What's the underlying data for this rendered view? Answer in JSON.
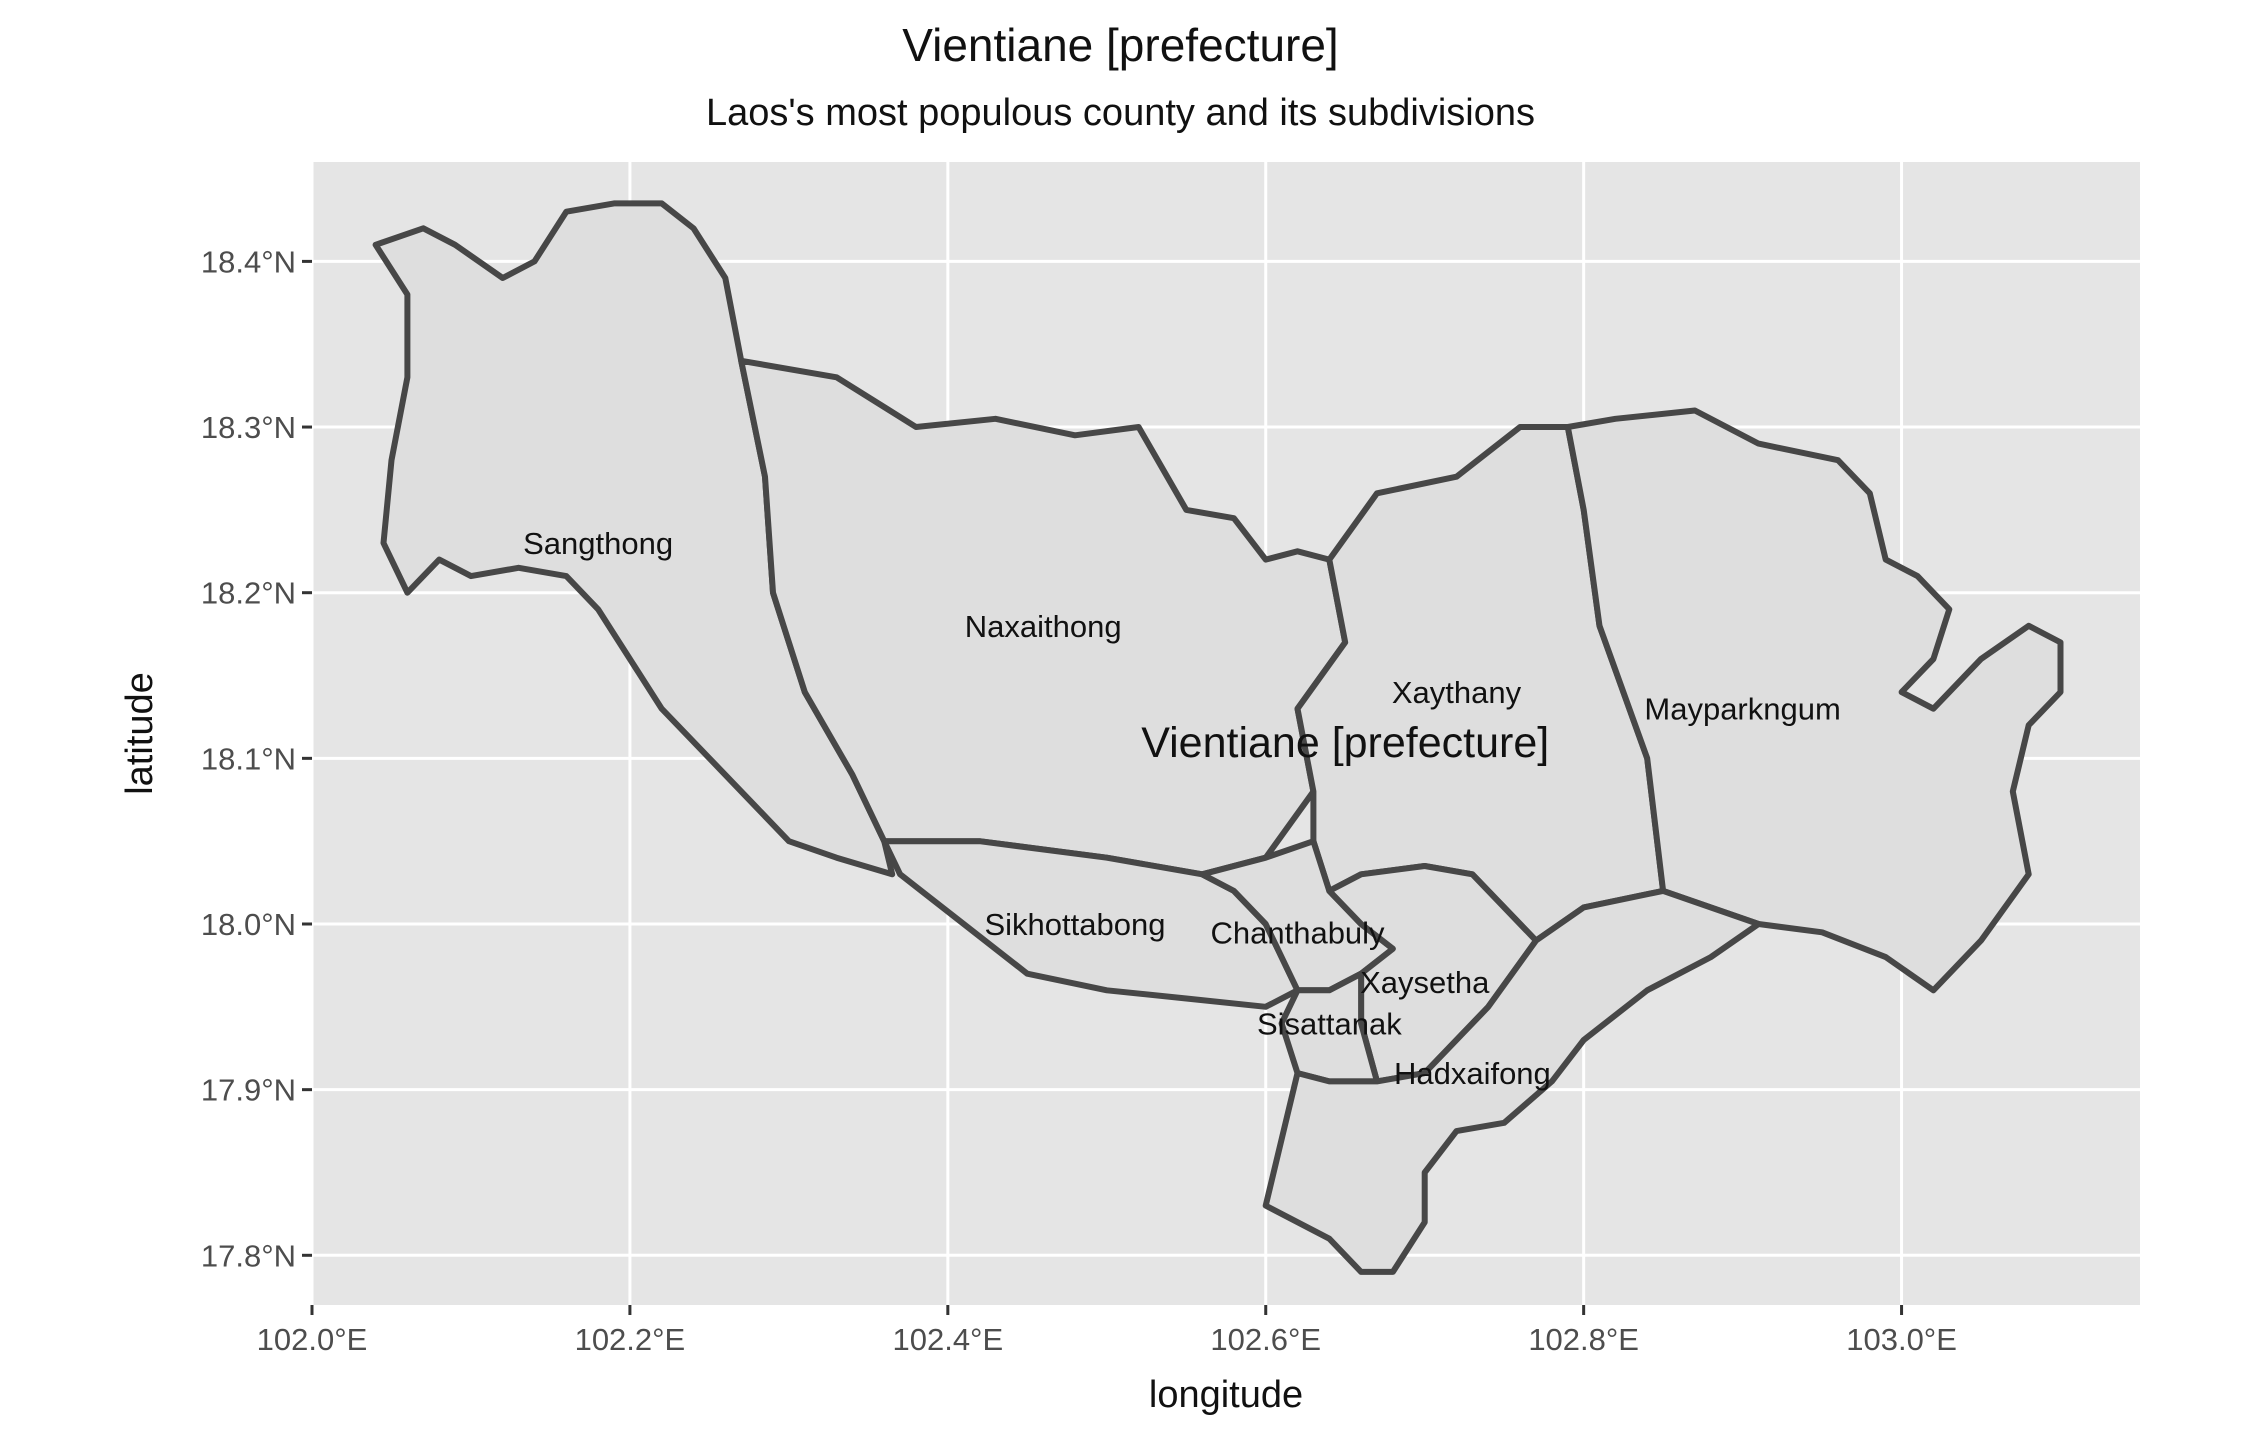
{
  "title": "Vientiane [prefecture]",
  "subtitle": "Laos's most populous county and its subdivisions",
  "colors": {
    "panel_background": "#e5e5e5",
    "region_fill": "#dedede",
    "region_stroke": "#474747",
    "grid": "#ffffff"
  },
  "chart_data": {
    "type": "map",
    "xlabel": "longitude",
    "ylabel": "latitude",
    "xlim": [
      102.0,
      103.15
    ],
    "ylim": [
      17.77,
      18.46
    ],
    "x_ticks": [
      {
        "value": 102.0,
        "label": "102.0°E"
      },
      {
        "value": 102.2,
        "label": "102.2°E"
      },
      {
        "value": 102.4,
        "label": "102.4°E"
      },
      {
        "value": 102.6,
        "label": "102.6°E"
      },
      {
        "value": 102.8,
        "label": "102.8°E"
      },
      {
        "value": 103.0,
        "label": "103.0°E"
      }
    ],
    "y_ticks": [
      {
        "value": 17.8,
        "label": "17.8°N"
      },
      {
        "value": 17.9,
        "label": "17.9°N"
      },
      {
        "value": 18.0,
        "label": "18.0°N"
      },
      {
        "value": 18.1,
        "label": "18.1°N"
      },
      {
        "value": 18.2,
        "label": "18.2°N"
      },
      {
        "value": 18.3,
        "label": "18.3°N"
      },
      {
        "value": 18.4,
        "label": "18.4°N"
      }
    ],
    "county_label": {
      "text": "Vientiane [prefecture]",
      "lon": 102.65,
      "lat": 18.11
    },
    "regions": [
      {
        "name": "Sangthong",
        "label_lon": 102.18,
        "label_lat": 18.23,
        "boundary": [
          [
            102.04,
            18.41
          ],
          [
            102.07,
            18.42
          ],
          [
            102.09,
            18.41
          ],
          [
            102.12,
            18.39
          ],
          [
            102.14,
            18.4
          ],
          [
            102.16,
            18.43
          ],
          [
            102.19,
            18.435
          ],
          [
            102.22,
            18.435
          ],
          [
            102.24,
            18.42
          ],
          [
            102.26,
            18.39
          ],
          [
            102.27,
            18.34
          ],
          [
            102.285,
            18.27
          ],
          [
            102.29,
            18.2
          ],
          [
            102.31,
            18.14
          ],
          [
            102.34,
            18.09
          ],
          [
            102.36,
            18.05
          ],
          [
            102.365,
            18.03
          ],
          [
            102.33,
            18.04
          ],
          [
            102.3,
            18.05
          ],
          [
            102.28,
            18.07
          ],
          [
            102.25,
            18.1
          ],
          [
            102.22,
            18.13
          ],
          [
            102.2,
            18.16
          ],
          [
            102.18,
            18.19
          ],
          [
            102.16,
            18.21
          ],
          [
            102.13,
            18.215
          ],
          [
            102.1,
            18.21
          ],
          [
            102.08,
            18.22
          ],
          [
            102.06,
            18.2
          ],
          [
            102.045,
            18.23
          ],
          [
            102.05,
            18.28
          ],
          [
            102.06,
            18.33
          ],
          [
            102.06,
            18.38
          ],
          [
            102.04,
            18.41
          ]
        ]
      },
      {
        "name": "Naxaithong",
        "label_lon": 102.46,
        "label_lat": 18.18,
        "boundary": [
          [
            102.27,
            18.34
          ],
          [
            102.33,
            18.33
          ],
          [
            102.38,
            18.3
          ],
          [
            102.43,
            18.305
          ],
          [
            102.48,
            18.295
          ],
          [
            102.52,
            18.3
          ],
          [
            102.55,
            18.25
          ],
          [
            102.58,
            18.245
          ],
          [
            102.6,
            18.22
          ],
          [
            102.62,
            18.225
          ],
          [
            102.64,
            18.22
          ],
          [
            102.65,
            18.17
          ],
          [
            102.62,
            18.13
          ],
          [
            102.63,
            18.08
          ],
          [
            102.6,
            18.04
          ],
          [
            102.56,
            18.03
          ],
          [
            102.5,
            18.04
          ],
          [
            102.42,
            18.05
          ],
          [
            102.36,
            18.05
          ],
          [
            102.34,
            18.09
          ],
          [
            102.31,
            18.14
          ],
          [
            102.29,
            18.2
          ],
          [
            102.285,
            18.27
          ],
          [
            102.27,
            18.34
          ]
        ]
      },
      {
        "name": "Xaythany",
        "label_lon": 102.72,
        "label_lat": 18.14,
        "boundary": [
          [
            102.64,
            18.22
          ],
          [
            102.67,
            18.26
          ],
          [
            102.72,
            18.27
          ],
          [
            102.76,
            18.3
          ],
          [
            102.79,
            18.3
          ],
          [
            102.8,
            18.25
          ],
          [
            102.81,
            18.18
          ],
          [
            102.84,
            18.1
          ],
          [
            102.85,
            18.02
          ],
          [
            102.8,
            18.01
          ],
          [
            102.77,
            17.99
          ],
          [
            102.73,
            18.03
          ],
          [
            102.7,
            18.035
          ],
          [
            102.66,
            18.03
          ],
          [
            102.64,
            18.02
          ],
          [
            102.63,
            18.05
          ],
          [
            102.63,
            18.08
          ],
          [
            102.62,
            18.13
          ],
          [
            102.65,
            18.17
          ],
          [
            102.64,
            18.22
          ]
        ]
      },
      {
        "name": "Mayparkngum",
        "label_lon": 102.9,
        "label_lat": 18.13,
        "boundary": [
          [
            102.79,
            18.3
          ],
          [
            102.82,
            18.305
          ],
          [
            102.87,
            18.31
          ],
          [
            102.91,
            18.29
          ],
          [
            102.96,
            18.28
          ],
          [
            102.98,
            18.26
          ],
          [
            102.99,
            18.22
          ],
          [
            103.01,
            18.21
          ],
          [
            103.03,
            18.19
          ],
          [
            103.02,
            18.16
          ],
          [
            103.0,
            18.14
          ],
          [
            103.02,
            18.13
          ],
          [
            103.05,
            18.16
          ],
          [
            103.08,
            18.18
          ],
          [
            103.1,
            18.17
          ],
          [
            103.1,
            18.14
          ],
          [
            103.08,
            18.12
          ],
          [
            103.07,
            18.08
          ],
          [
            103.08,
            18.03
          ],
          [
            103.05,
            17.99
          ],
          [
            103.02,
            17.96
          ],
          [
            102.99,
            17.98
          ],
          [
            102.95,
            17.995
          ],
          [
            102.91,
            18.0
          ],
          [
            102.85,
            18.02
          ],
          [
            102.84,
            18.1
          ],
          [
            102.81,
            18.18
          ],
          [
            102.8,
            18.25
          ],
          [
            102.79,
            18.3
          ]
        ]
      },
      {
        "name": "Sikhottabong",
        "label_lon": 102.48,
        "label_lat": 18.0,
        "boundary": [
          [
            102.36,
            18.05
          ],
          [
            102.42,
            18.05
          ],
          [
            102.5,
            18.04
          ],
          [
            102.56,
            18.03
          ],
          [
            102.58,
            18.02
          ],
          [
            102.6,
            18.0
          ],
          [
            102.62,
            17.96
          ],
          [
            102.6,
            17.95
          ],
          [
            102.55,
            17.955
          ],
          [
            102.5,
            17.96
          ],
          [
            102.45,
            17.97
          ],
          [
            102.41,
            18.0
          ],
          [
            102.37,
            18.03
          ],
          [
            102.36,
            18.05
          ]
        ]
      },
      {
        "name": "Chanthabuly",
        "label_lon": 102.62,
        "label_lat": 17.995,
        "boundary": [
          [
            102.56,
            18.03
          ],
          [
            102.6,
            18.04
          ],
          [
            102.63,
            18.05
          ],
          [
            102.64,
            18.02
          ],
          [
            102.66,
            18.0
          ],
          [
            102.68,
            17.985
          ],
          [
            102.66,
            17.97
          ],
          [
            102.64,
            17.96
          ],
          [
            102.62,
            17.96
          ],
          [
            102.6,
            18.0
          ],
          [
            102.58,
            18.02
          ],
          [
            102.56,
            18.03
          ]
        ]
      },
      {
        "name": "Xaysetha",
        "label_lon": 102.7,
        "label_lat": 17.965,
        "boundary": [
          [
            102.64,
            18.02
          ],
          [
            102.66,
            18.03
          ],
          [
            102.7,
            18.035
          ],
          [
            102.73,
            18.03
          ],
          [
            102.77,
            17.99
          ],
          [
            102.74,
            17.95
          ],
          [
            102.7,
            17.91
          ],
          [
            102.67,
            17.905
          ],
          [
            102.66,
            17.94
          ],
          [
            102.66,
            17.97
          ],
          [
            102.68,
            17.985
          ],
          [
            102.66,
            18.0
          ],
          [
            102.64,
            18.02
          ]
        ]
      },
      {
        "name": "Sisattanak",
        "label_lon": 102.64,
        "label_lat": 17.94,
        "boundary": [
          [
            102.62,
            17.96
          ],
          [
            102.64,
            17.96
          ],
          [
            102.66,
            17.97
          ],
          [
            102.66,
            17.94
          ],
          [
            102.67,
            17.905
          ],
          [
            102.64,
            17.905
          ],
          [
            102.62,
            17.91
          ],
          [
            102.61,
            17.94
          ],
          [
            102.62,
            17.96
          ]
        ]
      },
      {
        "name": "Hadxaifong",
        "label_lon": 102.73,
        "label_lat": 17.91,
        "boundary": [
          [
            102.62,
            17.91
          ],
          [
            102.64,
            17.905
          ],
          [
            102.67,
            17.905
          ],
          [
            102.7,
            17.91
          ],
          [
            102.74,
            17.95
          ],
          [
            102.77,
            17.99
          ],
          [
            102.8,
            18.01
          ],
          [
            102.85,
            18.02
          ],
          [
            102.91,
            18.0
          ],
          [
            102.88,
            17.98
          ],
          [
            102.84,
            17.96
          ],
          [
            102.8,
            17.93
          ],
          [
            102.78,
            17.905
          ],
          [
            102.75,
            17.88
          ],
          [
            102.72,
            17.875
          ],
          [
            102.7,
            17.85
          ],
          [
            102.7,
            17.82
          ],
          [
            102.68,
            17.79
          ],
          [
            102.66,
            17.79
          ],
          [
            102.64,
            17.81
          ],
          [
            102.6,
            17.83
          ],
          [
            102.61,
            17.87
          ],
          [
            102.62,
            17.91
          ]
        ]
      }
    ]
  }
}
